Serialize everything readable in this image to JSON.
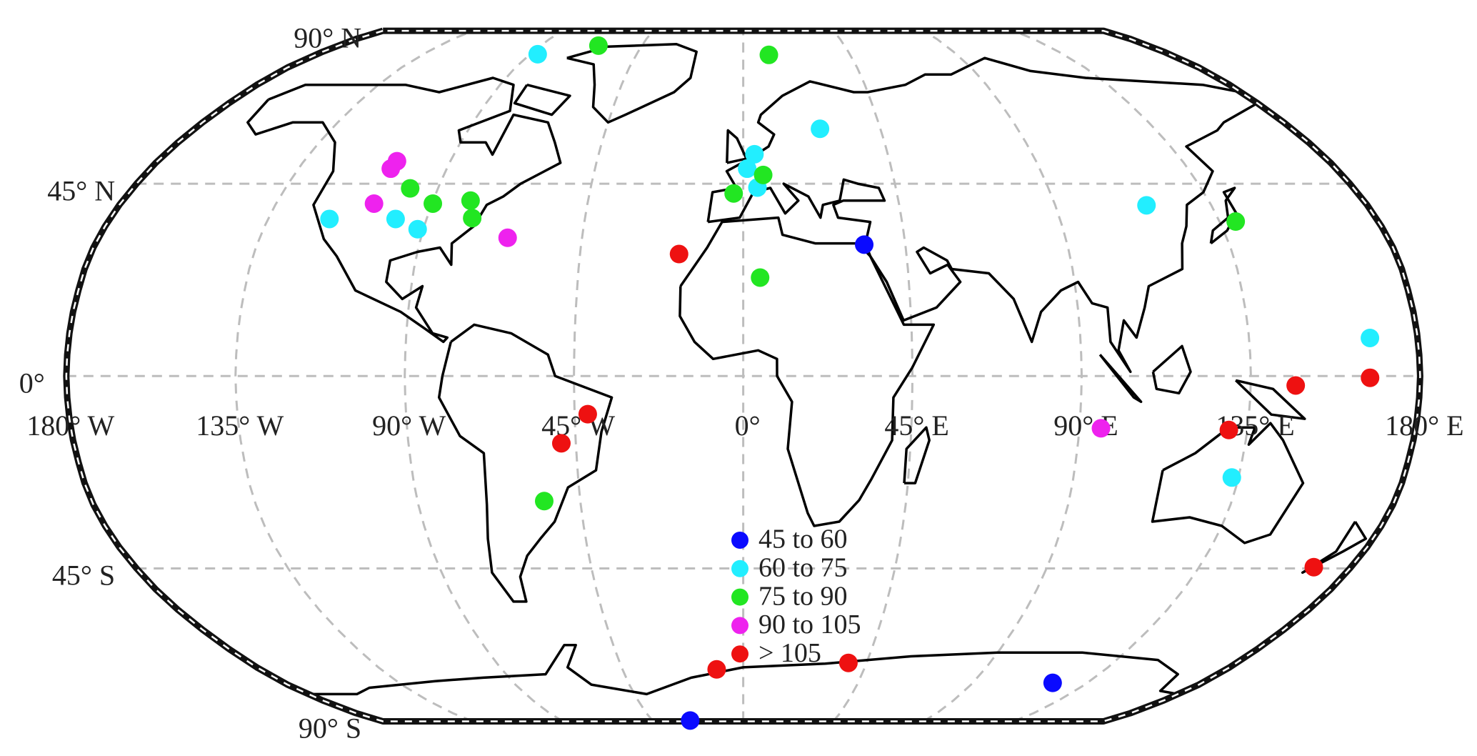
{
  "chart_data": {
    "type": "map",
    "xlim": [
      -180,
      180
    ],
    "ylim": [
      -90,
      90
    ],
    "xticks": [
      {
        "value": -180,
        "label": "180° W"
      },
      {
        "value": -135,
        "label": "135° W"
      },
      {
        "value": -90,
        "label": "90° W"
      },
      {
        "value": -45,
        "label": "45° W"
      },
      {
        "value": 0,
        "label": "0°"
      },
      {
        "value": 45,
        "label": "45° E"
      },
      {
        "value": 90,
        "label": "90° E"
      },
      {
        "value": 135,
        "label": "135° E"
      },
      {
        "value": 180,
        "label": "180° E"
      }
    ],
    "yticks": [
      {
        "value": -90,
        "label": "90° S"
      },
      {
        "value": -45,
        "label": "45° S"
      },
      {
        "value": 0,
        "label": "0°"
      },
      {
        "value": 45,
        "label": "45° N"
      },
      {
        "value": 90,
        "label": "90° N"
      }
    ],
    "grid": true,
    "series": [
      {
        "name": "45 to 60",
        "color": "#0a0aff",
        "lon": [
          33.6,
          121.4,
          -26.3
        ],
        "lat": [
          30.7,
          -74.5,
          -89.5
        ]
      },
      {
        "name": "60 to 75",
        "color": "#22eeff",
        "lon": [
          -86.8,
          -117.6,
          -98.8,
          -91.6,
          3.5,
          1.2,
          4.2,
          25.2,
          116.3,
          167.3,
          133.2
        ],
        "lat": [
          79.2,
          36.7,
          36.7,
          34.3,
          52.1,
          48.6,
          44.1,
          58.4,
          39.9,
          8.9,
          -23.7
        ]
      },
      {
        "name": "75 to 90",
        "color": "#22e622",
        "lon": [
          -64.4,
          10.8,
          -98.2,
          -89.7,
          -79.1,
          -77.1,
          6.0,
          -2.8,
          4.6,
          139.6,
          -55.0
        ],
        "lat": [
          82.4,
          79.0,
          43.9,
          40.3,
          41.0,
          36.9,
          47.1,
          42.7,
          23.0,
          36.1,
          -29.2
        ]
      },
      {
        "name": "90 to 105",
        "color": "#ee22ee",
        "lon": [
          -106.4,
          -107.0,
          -106.7,
          -65.8,
          95.8
        ],
        "lat": [
          50.4,
          48.6,
          40.3,
          32.3,
          -12.2
        ]
      },
      {
        "name": "> 105",
        "color": "#ee1111",
        "lon": [
          -17.7,
          -41.5,
          -48.9,
          147.0,
          166.7,
          130.1,
          169.0,
          -9.9,
          38.4
        ],
        "lat": [
          28.5,
          -8.9,
          -15.7,
          -2.2,
          -0.4,
          -12.6,
          -44.7,
          -70.6,
          -68.8
        ]
      }
    ]
  }
}
